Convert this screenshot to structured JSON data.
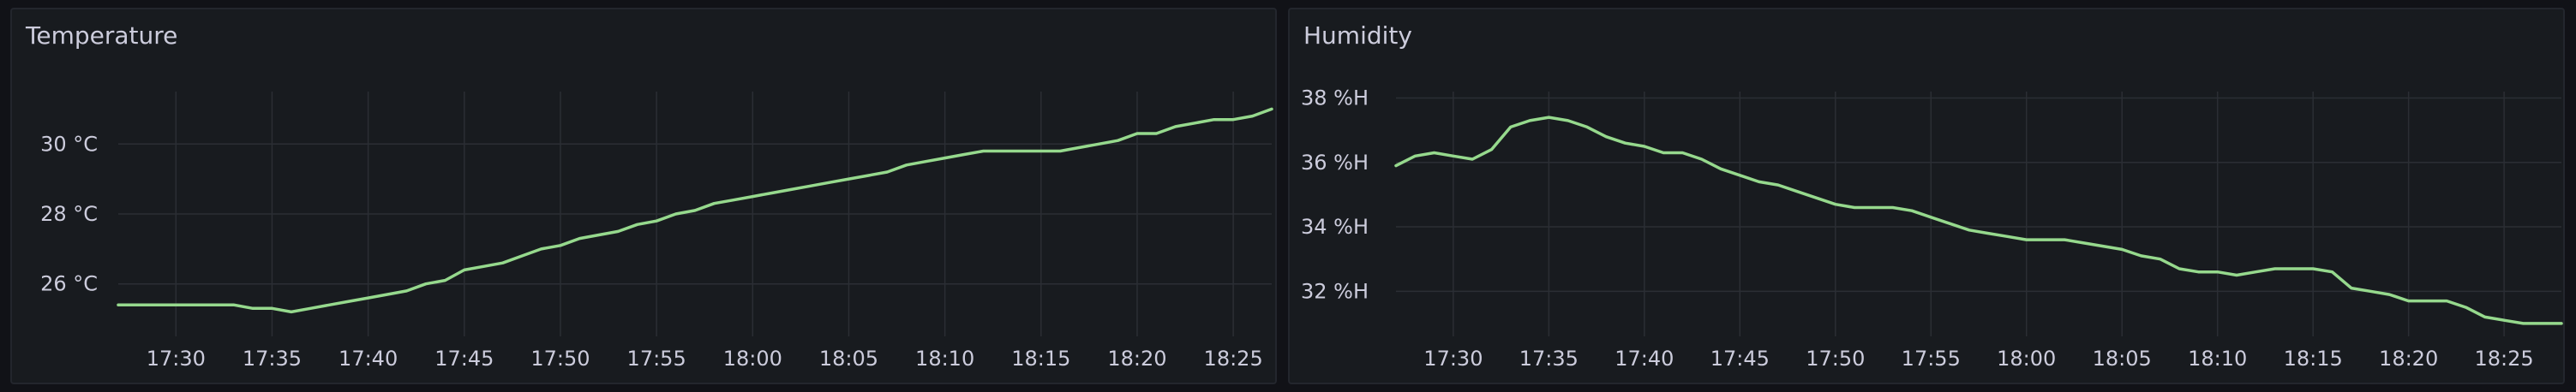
{
  "colors": {
    "series": "#96d98d"
  },
  "panels": [
    {
      "title": "Temperature",
      "chart_data": {
        "type": "line",
        "title": "Temperature",
        "unit": "°C",
        "x_axis": {
          "ticks": [
            "17:30",
            "17:35",
            "17:40",
            "17:45",
            "17:50",
            "17:55",
            "18:00",
            "18:05",
            "18:10",
            "18:15",
            "18:20",
            "18:25"
          ],
          "range": [
            "17:27",
            "18:27"
          ]
        },
        "y_axis": {
          "ticks": [
            {
              "value": 26,
              "label": "26 °C"
            },
            {
              "value": 28,
              "label": "28 °C"
            },
            {
              "value": 30,
              "label": "30 °C"
            }
          ],
          "range": [
            24.5,
            31.5
          ]
        },
        "grid": true,
        "series": [
          {
            "x": [
              "17:27",
              "17:28",
              "17:29",
              "17:30",
              "17:31",
              "17:32",
              "17:33",
              "17:34",
              "17:35",
              "17:36",
              "17:37",
              "17:38",
              "17:39",
              "17:40",
              "17:41",
              "17:42",
              "17:43",
              "17:44",
              "17:45",
              "17:46",
              "17:47",
              "17:48",
              "17:49",
              "17:50",
              "17:51",
              "17:52",
              "17:53",
              "17:54",
              "17:55",
              "17:56",
              "17:57",
              "17:58",
              "17:59",
              "18:00",
              "18:01",
              "18:02",
              "18:03",
              "18:04",
              "18:05",
              "18:06",
              "18:07",
              "18:08",
              "18:09",
              "18:10",
              "18:11",
              "18:12",
              "18:13",
              "18:14",
              "18:15",
              "18:16",
              "18:17",
              "18:18",
              "18:19",
              "18:20",
              "18:21",
              "18:22",
              "18:23",
              "18:24",
              "18:25",
              "18:26",
              "18:27"
            ],
            "values": [
              25.4,
              25.4,
              25.4,
              25.4,
              25.4,
              25.4,
              25.4,
              25.3,
              25.3,
              25.2,
              25.3,
              25.4,
              25.5,
              25.6,
              25.7,
              25.8,
              26.0,
              26.1,
              26.4,
              26.5,
              26.6,
              26.8,
              27.0,
              27.1,
              27.3,
              27.4,
              27.5,
              27.7,
              27.8,
              28.0,
              28.1,
              28.3,
              28.4,
              28.5,
              28.6,
              28.7,
              28.8,
              28.9,
              29.0,
              29.1,
              29.2,
              29.4,
              29.5,
              29.6,
              29.7,
              29.8,
              29.8,
              29.8,
              29.8,
              29.8,
              29.9,
              30.0,
              30.1,
              30.3,
              30.3,
              30.5,
              30.6,
              30.7,
              30.7,
              30.8,
              31.0
            ]
          }
        ]
      }
    },
    {
      "title": "Humidity",
      "chart_data": {
        "type": "line",
        "title": "Humidity",
        "unit": "%H",
        "x_axis": {
          "ticks": [
            "17:30",
            "17:35",
            "17:40",
            "17:45",
            "17:50",
            "17:55",
            "18:00",
            "18:05",
            "18:10",
            "18:15",
            "18:20",
            "18:25"
          ],
          "range": [
            "17:27",
            "18:28"
          ]
        },
        "y_axis": {
          "ticks": [
            {
              "value": 32,
              "label": "32 %H"
            },
            {
              "value": 34,
              "label": "34 %H"
            },
            {
              "value": 36,
              "label": "36 %H"
            },
            {
              "value": 38,
              "label": "38 %H"
            }
          ],
          "range": [
            30.6,
            38.2
          ]
        },
        "grid": true,
        "series": [
          {
            "x": [
              "17:27",
              "17:28",
              "17:29",
              "17:30",
              "17:31",
              "17:32",
              "17:33",
              "17:34",
              "17:35",
              "17:36",
              "17:37",
              "17:38",
              "17:39",
              "17:40",
              "17:41",
              "17:42",
              "17:43",
              "17:44",
              "17:45",
              "17:46",
              "17:47",
              "17:48",
              "17:49",
              "17:50",
              "17:51",
              "17:52",
              "17:53",
              "17:54",
              "17:55",
              "17:56",
              "17:57",
              "17:58",
              "17:59",
              "18:00",
              "18:01",
              "18:02",
              "18:03",
              "18:04",
              "18:05",
              "18:06",
              "18:07",
              "18:08",
              "18:09",
              "18:10",
              "18:11",
              "18:12",
              "18:13",
              "18:14",
              "18:15",
              "18:16",
              "18:17",
              "18:18",
              "18:19",
              "18:20",
              "18:21",
              "18:22",
              "18:23",
              "18:24",
              "18:25",
              "18:26",
              "18:27",
              "18:28"
            ],
            "values": [
              35.9,
              36.2,
              36.3,
              36.2,
              36.1,
              36.4,
              37.1,
              37.3,
              37.4,
              37.3,
              37.1,
              36.8,
              36.6,
              36.5,
              36.3,
              36.3,
              36.1,
              35.8,
              35.6,
              35.4,
              35.3,
              35.1,
              34.9,
              34.7,
              34.6,
              34.6,
              34.6,
              34.5,
              34.3,
              34.1,
              33.9,
              33.8,
              33.7,
              33.6,
              33.6,
              33.6,
              33.5,
              33.4,
              33.3,
              33.1,
              33.0,
              32.7,
              32.6,
              32.6,
              32.5,
              32.6,
              32.7,
              32.7,
              32.7,
              32.6,
              32.1,
              32.0,
              31.9,
              31.7,
              31.7,
              31.7,
              31.5,
              31.2,
              31.1,
              31.0,
              31.0,
              31.0
            ]
          }
        ]
      }
    }
  ]
}
